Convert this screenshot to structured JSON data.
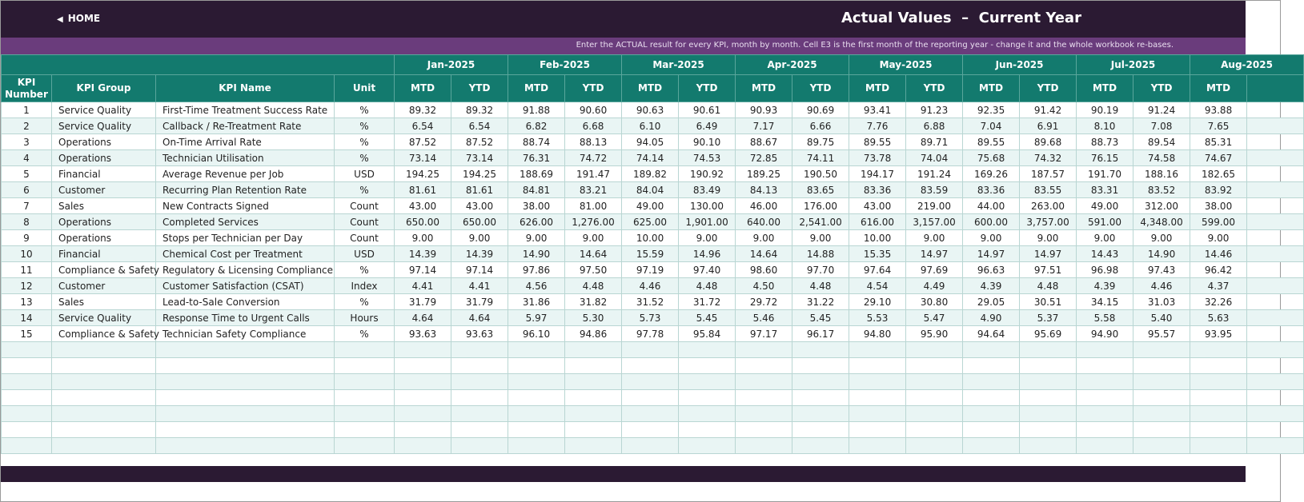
{
  "header": {
    "home": "HOME",
    "title": "Actual Values  –  Current Year",
    "instruction": "Enter the ACTUAL result for every KPI, month by month. Cell E3 is the first month of the reporting year - change it and the whole workbook re-bases."
  },
  "table": {
    "months": [
      "Jan-2025",
      "Feb-2025",
      "Mar-2025",
      "Apr-2025",
      "May-2025",
      "Jun-2025",
      "Jul-2025",
      "Aug-2025"
    ],
    "columns": [
      "KPI Number",
      "KPI Group",
      "KPI Name",
      "Unit"
    ],
    "sub_headers": [
      "MTD",
      "YTD"
    ],
    "rows": [
      [
        1,
        "Service Quality",
        "First-Time Treatment Success Rate",
        "%",
        [
          "89.32",
          "89.32",
          "91.88",
          "90.60",
          "90.63",
          "90.61",
          "90.93",
          "90.69",
          "93.41",
          "91.23",
          "92.35",
          "91.42",
          "90.19",
          "91.24",
          "93.88"
        ]
      ],
      [
        2,
        "Service Quality",
        "Callback / Re-Treatment Rate",
        "%",
        [
          "6.54",
          "6.54",
          "6.82",
          "6.68",
          "6.10",
          "6.49",
          "7.17",
          "6.66",
          "7.76",
          "6.88",
          "7.04",
          "6.91",
          "8.10",
          "7.08",
          "7.65"
        ]
      ],
      [
        3,
        "Operations",
        "On-Time Arrival Rate",
        "%",
        [
          "87.52",
          "87.52",
          "88.74",
          "88.13",
          "94.05",
          "90.10",
          "88.67",
          "89.75",
          "89.55",
          "89.71",
          "89.55",
          "89.68",
          "88.73",
          "89.54",
          "85.31"
        ]
      ],
      [
        4,
        "Operations",
        "Technician Utilisation",
        "%",
        [
          "73.14",
          "73.14",
          "76.31",
          "74.72",
          "74.14",
          "74.53",
          "72.85",
          "74.11",
          "73.78",
          "74.04",
          "75.68",
          "74.32",
          "76.15",
          "74.58",
          "74.67"
        ]
      ],
      [
        5,
        "Financial",
        "Average Revenue per Job",
        "USD",
        [
          "194.25",
          "194.25",
          "188.69",
          "191.47",
          "189.82",
          "190.92",
          "189.25",
          "190.50",
          "194.17",
          "191.24",
          "169.26",
          "187.57",
          "191.70",
          "188.16",
          "182.65"
        ]
      ],
      [
        6,
        "Customer",
        "Recurring Plan Retention Rate",
        "%",
        [
          "81.61",
          "81.61",
          "84.81",
          "83.21",
          "84.04",
          "83.49",
          "84.13",
          "83.65",
          "83.36",
          "83.59",
          "83.36",
          "83.55",
          "83.31",
          "83.52",
          "83.92"
        ]
      ],
      [
        7,
        "Sales",
        "New Contracts Signed",
        "Count",
        [
          "43.00",
          "43.00",
          "38.00",
          "81.00",
          "49.00",
          "130.00",
          "46.00",
          "176.00",
          "43.00",
          "219.00",
          "44.00",
          "263.00",
          "49.00",
          "312.00",
          "38.00"
        ]
      ],
      [
        8,
        "Operations",
        "Completed Services",
        "Count",
        [
          "650.00",
          "650.00",
          "626.00",
          "1,276.00",
          "625.00",
          "1,901.00",
          "640.00",
          "2,541.00",
          "616.00",
          "3,157.00",
          "600.00",
          "3,757.00",
          "591.00",
          "4,348.00",
          "599.00"
        ]
      ],
      [
        9,
        "Operations",
        "Stops per Technician per Day",
        "Count",
        [
          "9.00",
          "9.00",
          "9.00",
          "9.00",
          "10.00",
          "9.00",
          "9.00",
          "9.00",
          "10.00",
          "9.00",
          "9.00",
          "9.00",
          "9.00",
          "9.00",
          "9.00"
        ]
      ],
      [
        10,
        "Financial",
        "Chemical Cost per Treatment",
        "USD",
        [
          "14.39",
          "14.39",
          "14.90",
          "14.64",
          "15.59",
          "14.96",
          "14.64",
          "14.88",
          "15.35",
          "14.97",
          "14.97",
          "14.97",
          "14.43",
          "14.90",
          "14.46"
        ]
      ],
      [
        11,
        "Compliance & Safety",
        "Regulatory & Licensing Compliance",
        "%",
        [
          "97.14",
          "97.14",
          "97.86",
          "97.50",
          "97.19",
          "97.40",
          "98.60",
          "97.70",
          "97.64",
          "97.69",
          "96.63",
          "97.51",
          "96.98",
          "97.43",
          "96.42"
        ]
      ],
      [
        12,
        "Customer",
        "Customer Satisfaction (CSAT)",
        "Index",
        [
          "4.41",
          "4.41",
          "4.56",
          "4.48",
          "4.46",
          "4.48",
          "4.50",
          "4.48",
          "4.54",
          "4.49",
          "4.39",
          "4.48",
          "4.39",
          "4.46",
          "4.37"
        ]
      ],
      [
        13,
        "Sales",
        "Lead-to-Sale Conversion",
        "%",
        [
          "31.79",
          "31.79",
          "31.86",
          "31.82",
          "31.52",
          "31.72",
          "29.72",
          "31.22",
          "29.10",
          "30.80",
          "29.05",
          "30.51",
          "34.15",
          "31.03",
          "32.26"
        ]
      ],
      [
        14,
        "Service Quality",
        "Response Time to Urgent Calls",
        "Hours",
        [
          "4.64",
          "4.64",
          "5.97",
          "5.30",
          "5.73",
          "5.45",
          "5.46",
          "5.45",
          "5.53",
          "5.47",
          "4.90",
          "5.37",
          "5.58",
          "5.40",
          "5.63"
        ]
      ],
      [
        15,
        "Compliance & Safety",
        "Technician Safety Compliance",
        "%",
        [
          "93.63",
          "93.63",
          "96.10",
          "94.86",
          "97.78",
          "95.84",
          "97.17",
          "96.17",
          "94.80",
          "95.90",
          "94.64",
          "95.69",
          "94.90",
          "95.57",
          "93.95"
        ]
      ]
    ]
  }
}
